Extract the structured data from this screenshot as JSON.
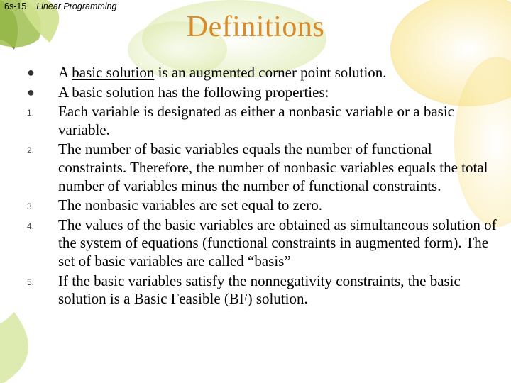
{
  "header": {
    "page_num": "6s-15",
    "chapter": "Linear Programming"
  },
  "title": {
    "text": "Definitions",
    "color": "#d98a2a"
  },
  "decor": {
    "green_dark": "#6a8a2f",
    "green_mid": "#9fbf4f",
    "green_light": "#cfe28f",
    "yellow": "#f8e07a",
    "orange": "#e8b050",
    "white": "#ffffff"
  },
  "items": [
    {
      "marker": "●",
      "marker_class": "bul",
      "html": "A <span class='ul'>basic solution</span> is an augmented corner point solution."
    },
    {
      "marker": "●",
      "marker_class": "bul",
      "html": "A basic solution has the following properties:"
    },
    {
      "marker": "1.",
      "marker_class": "",
      "html": "Each variable is designated as either a nonbasic variable or a basic variable."
    },
    {
      "marker": "2.",
      "marker_class": "",
      "html": "The number of basic variables equals the number of functional constraints. Therefore, the number of nonbasic variables equals the total number of variables minus the number of functional constraints."
    },
    {
      "marker": "3.",
      "marker_class": "",
      "html": "The nonbasic variables are set equal to zero."
    },
    {
      "marker": "4.",
      "marker_class": "",
      "html": "The values of the basic variables are obtained as simultaneous solution of the system of equations (functional constraints in augmented form). The set of basic variables are called “basis”"
    },
    {
      "marker": "5.",
      "marker_class": "",
      "html": "If the basic variables satisfy the nonnegativity constraints, the basic solution is a Basic Feasible (BF) solution."
    }
  ]
}
